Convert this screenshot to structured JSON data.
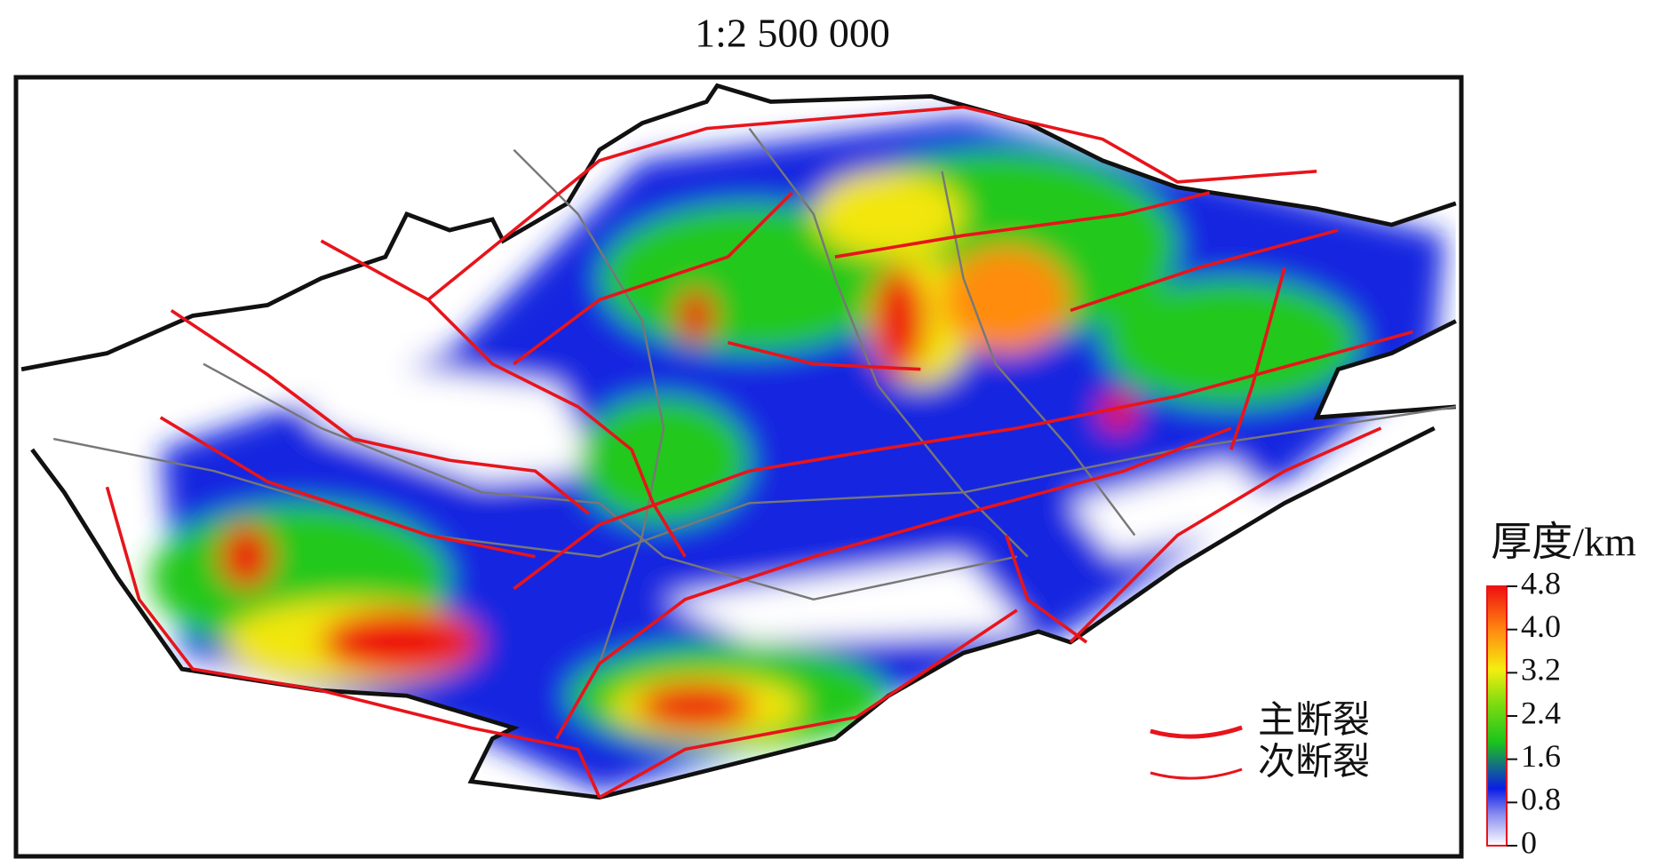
{
  "title": "1:2 500 000",
  "legend": {
    "items": [
      {
        "label": "主断裂",
        "color": "#e8141b"
      },
      {
        "label": "次断裂",
        "color": "#e8141b"
      }
    ]
  },
  "colorbar": {
    "title": "厚度/km",
    "range": [
      0,
      4.8
    ],
    "ticks": [
      0,
      0.8,
      1.6,
      2.4,
      3.2,
      {
        "value": 4,
        "label": "4.0"
      },
      4.8
    ]
  }
}
